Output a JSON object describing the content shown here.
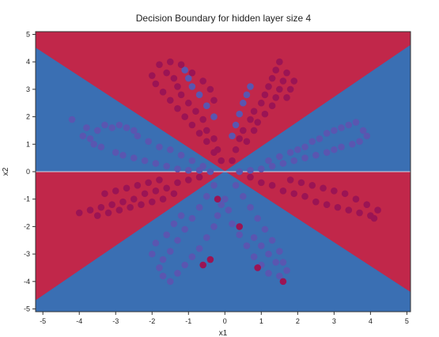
{
  "chart_data": {
    "type": "scatter",
    "title": "Decision Boundary for hidden layer size 4",
    "xlabel": "x1",
    "ylabel": "x2",
    "xlim": [
      -5.2,
      5.1
    ],
    "ylim": [
      -5.1,
      5.1
    ],
    "xticks": [
      "-5",
      "-4",
      "-3",
      "-2",
      "-1",
      "0",
      "1",
      "2",
      "3",
      "4",
      "5"
    ],
    "yticks": [
      "-5",
      "-4",
      "-3",
      "-2",
      "-1",
      "0",
      "1",
      "2",
      "3",
      "4",
      "5"
    ],
    "grid": false,
    "background_regions": [
      {
        "name": "red",
        "color": "#c1274a",
        "polygon": [
          [
            -5.2,
            0
          ],
          [
            -5.2,
            4.6
          ],
          [
            -5.2,
            5.1
          ],
          [
            5.1,
            5.1
          ],
          [
            5.1,
            4.6
          ],
          [
            0,
            0
          ]
        ]
      },
      {
        "name": "blue",
        "color": "#3a6fb3",
        "polygon": [
          [
            -5.2,
            4.5
          ],
          [
            0,
            0
          ],
          [
            -5.2,
            0
          ]
        ]
      },
      {
        "name": "blue",
        "color": "#3a6fb3",
        "polygon": [
          [
            0,
            0
          ],
          [
            5.1,
            4.6
          ],
          [
            5.1,
            0
          ]
        ]
      },
      {
        "name": "red",
        "color": "#c1274a",
        "polygon": [
          [
            -5.2,
            0
          ],
          [
            0,
            0
          ],
          [
            -5.2,
            -4.7
          ]
        ]
      },
      {
        "name": "red",
        "color": "#c1274a",
        "polygon": [
          [
            0,
            0
          ],
          [
            5.1,
            0
          ],
          [
            5.1,
            -4.4
          ]
        ]
      },
      {
        "name": "blue",
        "color": "#3a6fb3",
        "polygon": [
          [
            -5.2,
            -4.7
          ],
          [
            0,
            0
          ],
          [
            5.1,
            -4.4
          ],
          [
            5.1,
            -5.1
          ],
          [
            -5.2,
            -5.1
          ]
        ]
      }
    ],
    "series": [
      {
        "color": "#5a56b0",
        "points": [
          [
            -4.2,
            1.9
          ],
          [
            -3.8,
            1.6
          ],
          [
            -3.5,
            1.5
          ],
          [
            -3.3,
            1.7
          ],
          [
            -3.1,
            1.6
          ],
          [
            -2.9,
            1.7
          ],
          [
            -2.7,
            1.6
          ],
          [
            -2.5,
            1.5
          ],
          [
            -3.9,
            1.3
          ],
          [
            -3.7,
            1.2
          ],
          [
            -3.6,
            1.0
          ],
          [
            -3.4,
            0.9
          ],
          [
            -3.0,
            0.7
          ],
          [
            -2.8,
            0.6
          ],
          [
            -2.5,
            0.5
          ],
          [
            -2.2,
            0.4
          ],
          [
            -1.9,
            0.3
          ],
          [
            -1.6,
            0.2
          ],
          [
            -1.3,
            0.1
          ],
          [
            -1.0,
            0.05
          ],
          [
            -0.7,
            0.05
          ],
          [
            -0.4,
            0.0
          ],
          [
            -2.4,
            1.3
          ],
          [
            -2.1,
            1.1
          ],
          [
            -1.8,
            0.9
          ],
          [
            -1.5,
            0.8
          ],
          [
            -1.2,
            0.6
          ],
          [
            -0.9,
            0.4
          ],
          [
            -0.6,
            0.2
          ],
          [
            3.6,
            1.8
          ],
          [
            3.4,
            1.7
          ],
          [
            3.2,
            1.6
          ],
          [
            3.0,
            1.5
          ],
          [
            2.8,
            1.4
          ],
          [
            2.6,
            1.2
          ],
          [
            2.4,
            1.1
          ],
          [
            2.2,
            0.9
          ],
          [
            2.0,
            0.8
          ],
          [
            3.8,
            1.5
          ],
          [
            3.9,
            1.3
          ],
          [
            3.7,
            1.1
          ],
          [
            3.5,
            1.0
          ],
          [
            3.2,
            0.9
          ],
          [
            3.0,
            0.8
          ],
          [
            2.8,
            0.7
          ],
          [
            2.5,
            0.6
          ],
          [
            2.2,
            0.5
          ],
          [
            1.9,
            0.4
          ],
          [
            1.6,
            0.3
          ],
          [
            1.3,
            0.2
          ],
          [
            1.0,
            0.1
          ],
          [
            0.7,
            0.05
          ],
          [
            0.4,
            0.0
          ],
          [
            1.8,
            0.7
          ],
          [
            1.5,
            0.55
          ],
          [
            1.2,
            0.4
          ],
          [
            -0.3,
            -0.5
          ],
          [
            -0.5,
            -0.9
          ],
          [
            -0.7,
            -1.3
          ],
          [
            -0.9,
            -1.7
          ],
          [
            -1.1,
            -2.1
          ],
          [
            -1.3,
            -2.5
          ],
          [
            -1.5,
            -2.9
          ],
          [
            -1.7,
            -3.2
          ],
          [
            -1.8,
            -3.5
          ],
          [
            -1.7,
            -3.8
          ],
          [
            -1.5,
            -4.0
          ],
          [
            -1.3,
            -3.7
          ],
          [
            -1.1,
            -3.4
          ],
          [
            -0.9,
            -3.1
          ],
          [
            -0.7,
            -2.8
          ],
          [
            -0.5,
            -2.4
          ],
          [
            -0.3,
            -2.0
          ],
          [
            -0.2,
            -1.6
          ],
          [
            -0.1,
            -1.2
          ],
          [
            -2.0,
            -3.0
          ],
          [
            -1.9,
            -2.6
          ],
          [
            -1.6,
            -2.3
          ],
          [
            -1.4,
            -1.9
          ],
          [
            -1.2,
            -1.6
          ],
          [
            0.3,
            -0.5
          ],
          [
            0.5,
            -0.9
          ],
          [
            0.7,
            -1.3
          ],
          [
            0.9,
            -1.7
          ],
          [
            1.1,
            -2.1
          ],
          [
            1.3,
            -2.5
          ],
          [
            1.5,
            -2.9
          ],
          [
            1.6,
            -3.3
          ],
          [
            1.7,
            -3.6
          ],
          [
            1.5,
            -3.8
          ],
          [
            1.2,
            -3.7
          ],
          [
            1.0,
            -3.4
          ],
          [
            0.8,
            -3.1
          ],
          [
            0.6,
            -2.7
          ],
          [
            0.4,
            -2.3
          ],
          [
            0.2,
            -1.9
          ],
          [
            0.1,
            -1.4
          ],
          [
            0.0,
            -1.0
          ],
          [
            1.4,
            -3.3
          ],
          [
            1.2,
            -3.0
          ],
          [
            1.0,
            -2.7
          ],
          [
            0.8,
            -2.4
          ],
          [
            -1.1,
            3.7
          ],
          [
            -1.0,
            3.4
          ],
          [
            -0.9,
            3.1
          ],
          [
            -0.7,
            2.8
          ],
          [
            -0.5,
            2.4
          ],
          [
            -0.3,
            2.0
          ],
          [
            0.7,
            3.1
          ],
          [
            0.6,
            2.8
          ],
          [
            0.5,
            2.5
          ],
          [
            0.4,
            2.1
          ],
          [
            0.3,
            1.7
          ],
          [
            0.2,
            1.3
          ]
        ]
      },
      {
        "color": "#9b1454",
        "points": [
          [
            -1.8,
            3.9
          ],
          [
            -1.6,
            3.6
          ],
          [
            -1.4,
            3.4
          ],
          [
            -1.3,
            3.1
          ],
          [
            -1.2,
            2.8
          ],
          [
            -1.0,
            2.5
          ],
          [
            -0.8,
            2.2
          ],
          [
            -0.6,
            1.9
          ],
          [
            -0.5,
            1.5
          ],
          [
            -0.3,
            1.2
          ],
          [
            -0.2,
            0.8
          ],
          [
            -0.1,
            0.4
          ],
          [
            -2.0,
            3.5
          ],
          [
            -1.9,
            3.2
          ],
          [
            -1.7,
            2.9
          ],
          [
            -1.5,
            2.6
          ],
          [
            -1.3,
            2.3
          ],
          [
            -1.1,
            2.0
          ],
          [
            -0.9,
            1.7
          ],
          [
            -0.7,
            1.4
          ],
          [
            -0.5,
            1.1
          ],
          [
            -0.3,
            0.7
          ],
          [
            -1.5,
            4.0
          ],
          [
            -1.2,
            3.9
          ],
          [
            -0.9,
            3.6
          ],
          [
            -0.6,
            3.3
          ],
          [
            -0.4,
            3.0
          ],
          [
            -0.3,
            2.6
          ],
          [
            1.5,
            4.0
          ],
          [
            1.4,
            3.7
          ],
          [
            1.3,
            3.4
          ],
          [
            1.2,
            3.1
          ],
          [
            1.1,
            2.8
          ],
          [
            1.0,
            2.5
          ],
          [
            0.8,
            2.2
          ],
          [
            0.7,
            1.9
          ],
          [
            0.5,
            1.5
          ],
          [
            0.4,
            1.2
          ],
          [
            0.3,
            0.8
          ],
          [
            0.2,
            0.4
          ],
          [
            1.7,
            3.6
          ],
          [
            1.6,
            3.3
          ],
          [
            1.5,
            3.0
          ],
          [
            1.4,
            2.7
          ],
          [
            1.3,
            2.4
          ],
          [
            1.1,
            2.1
          ],
          [
            0.9,
            1.8
          ],
          [
            0.8,
            1.5
          ],
          [
            0.6,
            1.1
          ],
          [
            1.9,
            3.3
          ],
          [
            1.8,
            3.0
          ],
          [
            1.7,
            2.7
          ],
          [
            -4.0,
            -1.5
          ],
          [
            -3.7,
            -1.4
          ],
          [
            -3.4,
            -1.3
          ],
          [
            -3.1,
            -1.2
          ],
          [
            -2.8,
            -1.1
          ],
          [
            -2.5,
            -1.0
          ],
          [
            -2.2,
            -0.8
          ],
          [
            -1.9,
            -0.7
          ],
          [
            -1.6,
            -0.6
          ],
          [
            -1.3,
            -0.4
          ],
          [
            -1.0,
            -0.3
          ],
          [
            -0.7,
            -0.2
          ],
          [
            -3.5,
            -1.6
          ],
          [
            -3.2,
            -1.5
          ],
          [
            -2.9,
            -1.4
          ],
          [
            -2.6,
            -1.3
          ],
          [
            -2.3,
            -1.2
          ],
          [
            -2.0,
            -1.1
          ],
          [
            -1.7,
            -1.0
          ],
          [
            -1.4,
            -0.8
          ],
          [
            -3.3,
            -0.8
          ],
          [
            -3.0,
            -0.7
          ],
          [
            -2.7,
            -0.6
          ],
          [
            -2.4,
            -0.5
          ],
          [
            -2.1,
            -0.4
          ],
          [
            -1.8,
            -0.3
          ],
          [
            4.0,
            -1.6
          ],
          [
            3.7,
            -1.5
          ],
          [
            3.4,
            -1.4
          ],
          [
            3.1,
            -1.3
          ],
          [
            2.8,
            -1.2
          ],
          [
            2.5,
            -1.1
          ],
          [
            2.2,
            -0.9
          ],
          [
            1.9,
            -0.8
          ],
          [
            1.6,
            -0.7
          ],
          [
            1.3,
            -0.5
          ],
          [
            1.0,
            -0.4
          ],
          [
            0.7,
            -0.2
          ],
          [
            3.9,
            -1.2
          ],
          [
            3.6,
            -1.0
          ],
          [
            3.3,
            -0.8
          ],
          [
            3.0,
            -0.7
          ],
          [
            2.7,
            -0.6
          ],
          [
            2.4,
            -0.5
          ],
          [
            2.1,
            -0.4
          ],
          [
            1.8,
            -0.3
          ],
          [
            4.2,
            -1.4
          ],
          [
            4.1,
            -1.7
          ],
          [
            -0.4,
            -3.2
          ],
          [
            -0.6,
            -3.4
          ],
          [
            0.9,
            -3.5
          ],
          [
            1.6,
            -4.0
          ],
          [
            0.4,
            -2.0
          ],
          [
            -0.2,
            -1.0
          ]
        ]
      }
    ]
  }
}
